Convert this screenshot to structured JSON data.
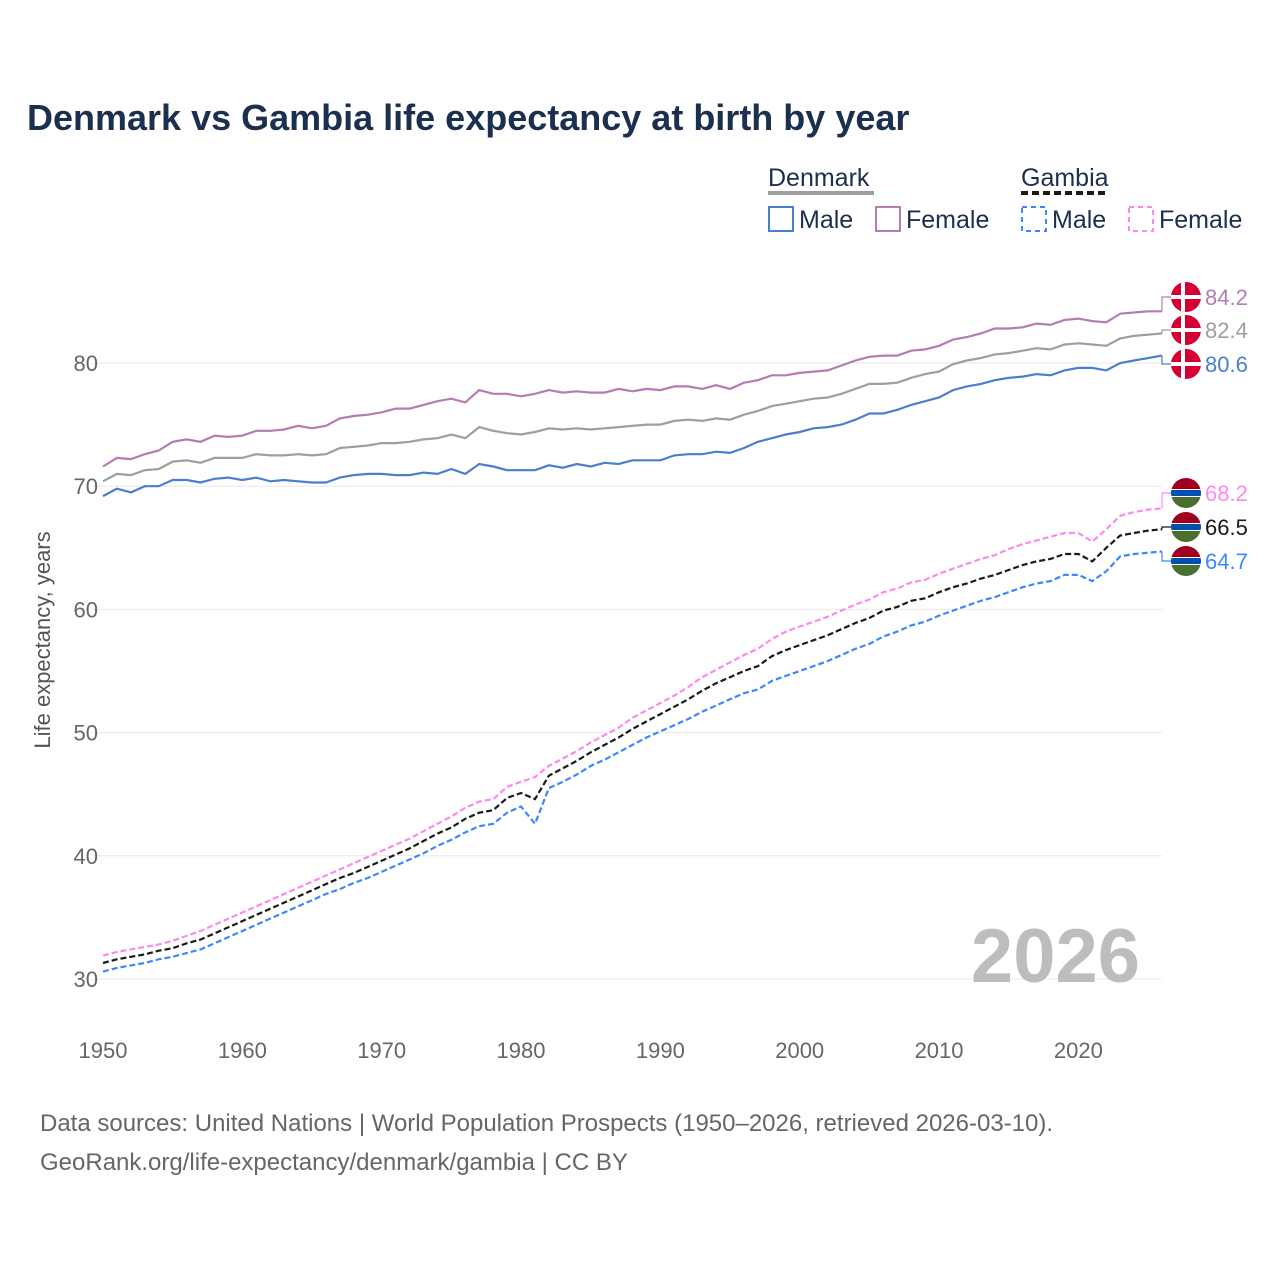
{
  "chart_data": {
    "type": "line",
    "title": "Denmark vs Gambia life expectancy at birth by year",
    "xlabel": "",
    "ylabel": "Life expectancy, years",
    "xlim": [
      1950,
      2026
    ],
    "ylim": [
      27,
      86
    ],
    "x_ticks": [
      1950,
      1960,
      1970,
      1980,
      1990,
      2000,
      2010,
      2020
    ],
    "y_ticks": [
      30,
      40,
      50,
      60,
      70,
      80
    ],
    "grid": true,
    "watermark_year": "2026",
    "legend": {
      "placement": "top-right",
      "groups": [
        {
          "name": "Denmark",
          "style": "solid",
          "items": [
            "Male",
            "Female"
          ]
        },
        {
          "name": "Gambia",
          "style": "dashed",
          "items": [
            "Male",
            "Female"
          ]
        }
      ]
    },
    "x_start": 1950,
    "series": [
      {
        "name": "Denmark Female",
        "country": "Denmark",
        "color": "#b57bb5",
        "dashed": false,
        "end_label": "84.2",
        "values": [
          71.6,
          72.3,
          72.2,
          72.6,
          72.9,
          73.6,
          73.8,
          73.6,
          74.1,
          74.0,
          74.1,
          74.5,
          74.5,
          74.6,
          74.9,
          74.7,
          74.9,
          75.5,
          75.7,
          75.8,
          76.0,
          76.3,
          76.3,
          76.6,
          76.9,
          77.1,
          76.8,
          77.8,
          77.5,
          77.5,
          77.3,
          77.5,
          77.8,
          77.6,
          77.7,
          77.6,
          77.6,
          77.9,
          77.7,
          77.9,
          77.8,
          78.1,
          78.1,
          77.9,
          78.2,
          77.9,
          78.4,
          78.6,
          79.0,
          79.0,
          79.2,
          79.3,
          79.4,
          79.8,
          80.2,
          80.5,
          80.6,
          80.6,
          81.0,
          81.1,
          81.4,
          81.9,
          82.1,
          82.4,
          82.8,
          82.8,
          82.9,
          83.2,
          83.1,
          83.5,
          83.6,
          83.4,
          83.3,
          84.0,
          84.1,
          84.2,
          84.2
        ]
      },
      {
        "name": "Denmark Total",
        "country": "Denmark",
        "color": "#9e9e9e",
        "dashed": false,
        "end_label": "82.4",
        "values": [
          70.4,
          71.0,
          70.9,
          71.3,
          71.4,
          72.0,
          72.1,
          71.9,
          72.3,
          72.3,
          72.3,
          72.6,
          72.5,
          72.5,
          72.6,
          72.5,
          72.6,
          73.1,
          73.2,
          73.3,
          73.5,
          73.5,
          73.6,
          73.8,
          73.9,
          74.2,
          73.9,
          74.8,
          74.5,
          74.3,
          74.2,
          74.4,
          74.7,
          74.6,
          74.7,
          74.6,
          74.7,
          74.8,
          74.9,
          75.0,
          75.0,
          75.3,
          75.4,
          75.3,
          75.5,
          75.4,
          75.8,
          76.1,
          76.5,
          76.7,
          76.9,
          77.1,
          77.2,
          77.5,
          77.9,
          78.3,
          78.3,
          78.4,
          78.8,
          79.1,
          79.3,
          79.9,
          80.2,
          80.4,
          80.7,
          80.8,
          81.0,
          81.2,
          81.1,
          81.5,
          81.6,
          81.5,
          81.4,
          82.0,
          82.2,
          82.3,
          82.4
        ]
      },
      {
        "name": "Denmark Male",
        "country": "Denmark",
        "color": "#4a7fd0",
        "dashed": false,
        "end_label": "80.6",
        "values": [
          69.2,
          69.8,
          69.5,
          70.0,
          70.0,
          70.5,
          70.5,
          70.3,
          70.6,
          70.7,
          70.5,
          70.7,
          70.4,
          70.5,
          70.4,
          70.3,
          70.3,
          70.7,
          70.9,
          71.0,
          71.0,
          70.9,
          70.9,
          71.1,
          71.0,
          71.4,
          71.0,
          71.8,
          71.6,
          71.3,
          71.3,
          71.3,
          71.7,
          71.5,
          71.8,
          71.6,
          71.9,
          71.8,
          72.1,
          72.1,
          72.1,
          72.5,
          72.6,
          72.6,
          72.8,
          72.7,
          73.1,
          73.6,
          73.9,
          74.2,
          74.4,
          74.7,
          74.8,
          75.0,
          75.4,
          75.9,
          75.9,
          76.2,
          76.6,
          76.9,
          77.2,
          77.8,
          78.1,
          78.3,
          78.6,
          78.8,
          78.9,
          79.1,
          79.0,
          79.4,
          79.6,
          79.6,
          79.4,
          80.0,
          80.2,
          80.4,
          80.6
        ]
      },
      {
        "name": "Gambia Female",
        "country": "Gambia",
        "color": "#ff88ee",
        "dashed": true,
        "end_label": "68.2",
        "values": [
          31.9,
          32.2,
          32.4,
          32.6,
          32.8,
          33.1,
          33.5,
          33.9,
          34.4,
          34.9,
          35.4,
          35.9,
          36.4,
          36.9,
          37.4,
          37.9,
          38.4,
          38.9,
          39.4,
          39.9,
          40.4,
          40.9,
          41.4,
          42.0,
          42.6,
          43.2,
          43.9,
          44.4,
          44.6,
          45.6,
          46.0,
          46.4,
          47.3,
          47.9,
          48.5,
          49.2,
          49.8,
          50.4,
          51.2,
          51.8,
          52.4,
          53.0,
          53.7,
          54.5,
          55.1,
          55.7,
          56.3,
          56.8,
          57.6,
          58.2,
          58.6,
          59.0,
          59.4,
          59.9,
          60.4,
          60.8,
          61.4,
          61.7,
          62.2,
          62.4,
          62.9,
          63.3,
          63.7,
          64.1,
          64.4,
          64.9,
          65.3,
          65.6,
          65.9,
          66.2,
          66.2,
          65.5,
          66.5,
          67.6,
          67.9,
          68.1,
          68.2
        ]
      },
      {
        "name": "Gambia Total",
        "country": "Gambia",
        "color": "#1a1a1a",
        "dashed": true,
        "end_label": "66.5",
        "values": [
          31.3,
          31.6,
          31.8,
          32.0,
          32.3,
          32.5,
          32.9,
          33.2,
          33.7,
          34.2,
          34.7,
          35.2,
          35.7,
          36.2,
          36.7,
          37.2,
          37.7,
          38.2,
          38.6,
          39.1,
          39.6,
          40.1,
          40.6,
          41.2,
          41.8,
          42.3,
          43.0,
          43.5,
          43.7,
          44.7,
          45.1,
          44.6,
          46.5,
          47.1,
          47.7,
          48.4,
          49.0,
          49.6,
          50.3,
          50.9,
          51.5,
          52.1,
          52.7,
          53.4,
          54.0,
          54.5,
          55.0,
          55.4,
          56.2,
          56.7,
          57.1,
          57.5,
          57.9,
          58.4,
          58.9,
          59.3,
          59.9,
          60.2,
          60.7,
          60.9,
          61.4,
          61.8,
          62.1,
          62.5,
          62.8,
          63.2,
          63.6,
          63.9,
          64.1,
          64.5,
          64.5,
          63.9,
          65.0,
          66.0,
          66.2,
          66.4,
          66.5
        ]
      },
      {
        "name": "Gambia Male",
        "country": "Gambia",
        "color": "#3d88ff",
        "dashed": true,
        "end_label": "64.7",
        "values": [
          30.6,
          30.9,
          31.1,
          31.3,
          31.6,
          31.8,
          32.1,
          32.4,
          32.9,
          33.4,
          33.9,
          34.4,
          34.9,
          35.4,
          35.9,
          36.4,
          36.9,
          37.3,
          37.8,
          38.2,
          38.7,
          39.2,
          39.7,
          40.2,
          40.8,
          41.3,
          41.9,
          42.4,
          42.6,
          43.5,
          44.0,
          42.6,
          45.5,
          46.0,
          46.6,
          47.3,
          47.8,
          48.4,
          49.0,
          49.6,
          50.1,
          50.6,
          51.1,
          51.7,
          52.2,
          52.7,
          53.2,
          53.5,
          54.2,
          54.6,
          55.0,
          55.4,
          55.8,
          56.3,
          56.8,
          57.2,
          57.8,
          58.2,
          58.7,
          59.0,
          59.5,
          59.9,
          60.3,
          60.7,
          61.0,
          61.4,
          61.8,
          62.1,
          62.3,
          62.8,
          62.8,
          62.3,
          63.1,
          64.3,
          64.5,
          64.6,
          64.7
        ]
      }
    ],
    "colors": {
      "title": "#1b2f4e",
      "denmark_flag": "#d50032",
      "gambia_red": "#a0001e",
      "gambia_blue": "#0050b0",
      "gambia_green": "#4a7030"
    }
  },
  "footer": {
    "line1": "Data sources: United Nations | World Population Prospects (1950–2026, retrieved 2026-03-10).",
    "line2": "GeoRank.org/life-expectancy/denmark/gambia | CC BY"
  }
}
